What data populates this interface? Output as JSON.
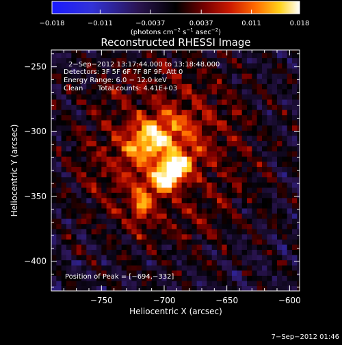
{
  "colorbar": {
    "tick_labels": [
      "−0.018",
      "−0.011",
      "−0.0037",
      "0.0037",
      "0.011",
      "0.018"
    ],
    "tick_values": [
      -0.018,
      -0.011,
      -0.0037,
      0.0037,
      0.011,
      0.018
    ],
    "min": -0.018,
    "max": 0.018,
    "units_prefix": "(photons cm",
    "units_exp1": "−2",
    "units_mid": " s",
    "units_exp2": "−1",
    "units_mid2": " asec",
    "units_exp3": "−2",
    "units_suffix": ")"
  },
  "title": "Reconstructed RHESSI Image",
  "info": {
    "line1": "2−Sep−2012 13:17:44.000 to 13:18:48.000",
    "line2": "Detectors: 3F 5F 6F 7F 8F 9F, Att 0",
    "line3": "Energy Range: 6.0 − 12.0 keV",
    "line4_a": "Clean",
    "line4_b": "Total counts: 4.41E+03",
    "peak": "Position of Peak = [−694,−332]"
  },
  "axes": {
    "xlabel": "Heliocentric X (arcsec)",
    "ylabel": "Heliocentric Y (arcsec)",
    "x_ticks": [
      "−750",
      "−700",
      "−650",
      "−600"
    ],
    "x_tick_values": [
      -750,
      -700,
      -650,
      -600
    ],
    "y_ticks": [
      "−250",
      "−300",
      "−350",
      "−400"
    ],
    "y_tick_values": [
      -250,
      -300,
      -350,
      -400
    ],
    "xlim": [
      -790,
      -592
    ],
    "ylim": [
      -423,
      -237
    ]
  },
  "footer_date": "7−Sep−2012 01:46",
  "chart_data": {
    "type": "heatmap",
    "title": "Reconstructed RHESSI Image",
    "xlabel": "Heliocentric X (arcsec)",
    "ylabel": "Heliocentric Y (arcsec)",
    "xlim": [
      -790,
      -592
    ],
    "ylim": [
      -423,
      -237
    ],
    "peak_position": [
      -694,
      -332
    ],
    "color_range": [
      -0.018,
      0.018
    ],
    "colormap": "blue-black-red-yellow-white",
    "emission_sources": [
      {
        "x": -694,
        "y": -332,
        "peak": 0.018,
        "sigma_x": 12,
        "sigma_y": 6,
        "angle_deg": 40
      },
      {
        "x": -712,
        "y": -305,
        "peak": 0.01,
        "sigma_x": 14,
        "sigma_y": 10,
        "angle_deg": 30
      },
      {
        "x": -718,
        "y": -357,
        "peak": 0.011,
        "sigma_x": 5,
        "sigma_y": 8,
        "angle_deg": 0
      },
      {
        "x": -700,
        "y": -312,
        "peak": 0.008,
        "sigma_x": 28,
        "sigma_y": 20,
        "angle_deg": 40
      }
    ]
  }
}
